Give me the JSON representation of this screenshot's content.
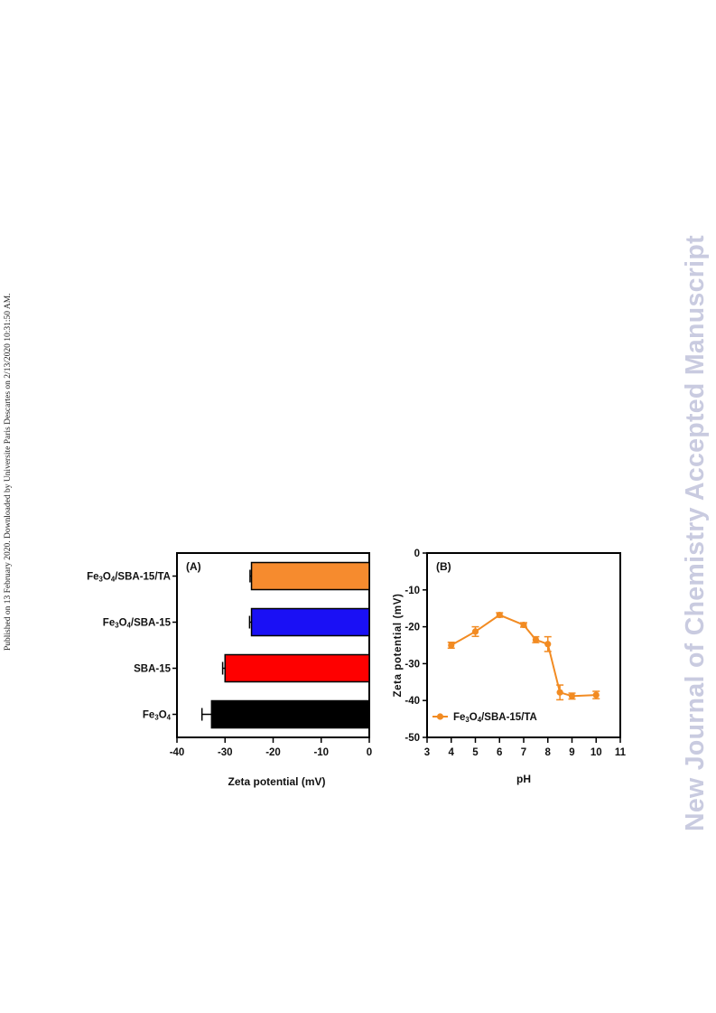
{
  "side_note": "Published on 13 February 2020. Downloaded by Universite Paris Descartes on 2/13/2020 10:31:50 AM.",
  "watermark": "New Journal of Chemistry Accepted Manuscript",
  "chart_data": [
    {
      "type": "bar",
      "orientation": "horizontal",
      "panel_label": "(A)",
      "xlabel": "Zeta potential (mV)",
      "ylabel": "",
      "xlim": [
        -40,
        0
      ],
      "x_ticks": [
        -40,
        -30,
        -20,
        -10,
        0
      ],
      "categories": [
        {
          "base": "Fe",
          "s1": "3",
          "mid": "O",
          "s2": "4",
          "rest": "/SBA-15/TA"
        },
        {
          "base": "Fe",
          "s1": "3",
          "mid": "O",
          "s2": "4",
          "rest": "/SBA-15"
        },
        {
          "base": "SBA-15",
          "s1": "",
          "mid": "",
          "s2": "",
          "rest": ""
        },
        {
          "base": "Fe",
          "s1": "3",
          "mid": "O",
          "s2": "4",
          "rest": ""
        }
      ],
      "values": [
        -24.5,
        -24.5,
        -30,
        -32.8
      ],
      "errors": [
        0.3,
        0.4,
        0.5,
        2.0
      ],
      "colors": [
        "#f68b2e",
        "#1a10f5",
        "#fe0000",
        "#000000"
      ]
    },
    {
      "type": "line",
      "panel_label": "(B)",
      "xlabel": "pH",
      "ylabel": "Zeta potential (mV)",
      "xlim": [
        3,
        11
      ],
      "ylim": [
        -50,
        0
      ],
      "x_ticks": [
        3,
        4,
        5,
        6,
        7,
        8,
        9,
        10,
        11
      ],
      "y_ticks": [
        0,
        -10,
        -20,
        -30,
        -40,
        -50
      ],
      "series": [
        {
          "name": {
            "base": "Fe",
            "s1": "3",
            "mid": "O",
            "s2": "4",
            "rest": "/SBA-15/TA"
          },
          "color": "#f28b22",
          "x": [
            4,
            5,
            6,
            7,
            7.5,
            8,
            8.5,
            9,
            10
          ],
          "y": [
            -25,
            -21.3,
            -16.8,
            -19.5,
            -23.5,
            -24.7,
            -37.8,
            -38.8,
            -38.5
          ],
          "errors": [
            0.8,
            1.3,
            0.6,
            0.6,
            0.8,
            2.0,
            2.0,
            0.8,
            1.0
          ]
        }
      ],
      "legend_position": "bottom-left"
    }
  ]
}
